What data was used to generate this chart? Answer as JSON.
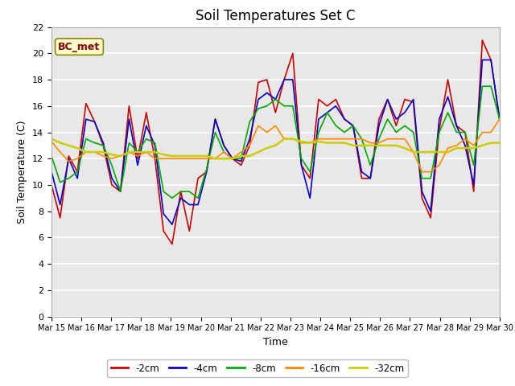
{
  "title": "Soil Temperatures Set C",
  "xlabel": "Time",
  "ylabel": "Soil Temperature (C)",
  "ylim": [
    0,
    22
  ],
  "yticks": [
    0,
    2,
    4,
    6,
    8,
    10,
    12,
    14,
    16,
    18,
    20,
    22
  ],
  "x_labels": [
    "Mar 15",
    "Mar 16",
    "Mar 17",
    "Mar 18",
    "Mar 19",
    "Mar 20",
    "Mar 21",
    "Mar 22",
    "Mar 23",
    "Mar 24",
    "Mar 25",
    "Mar 26",
    "Mar 27",
    "Mar 28",
    "Mar 29",
    "Mar 30"
  ],
  "annotation": "BC_met",
  "fig_bg": "#ffffff",
  "plot_bg": "#e8e8e8",
  "grid_color": "#ffffff",
  "series": {
    "-2cm": {
      "color": "#cc0000",
      "lw": 1.2
    },
    "-4cm": {
      "color": "#0000cc",
      "lw": 1.2
    },
    "-8cm": {
      "color": "#00aa00",
      "lw": 1.2
    },
    "-16cm": {
      "color": "#ff8800",
      "lw": 1.2
    },
    "-32cm": {
      "color": "#cccc00",
      "lw": 1.8
    }
  },
  "series_order": [
    "-2cm",
    "-4cm",
    "-8cm",
    "-16cm",
    "-32cm"
  ],
  "data": {
    "-2cm": [
      10.0,
      7.5,
      12.2,
      11.0,
      16.2,
      14.8,
      13.0,
      10.0,
      9.5,
      16.0,
      12.0,
      15.5,
      12.0,
      6.5,
      5.5,
      9.5,
      6.5,
      10.5,
      11.0,
      15.0,
      13.0,
      12.0,
      11.5,
      13.0,
      17.8,
      18.0,
      15.5,
      18.0,
      20.0,
      11.5,
      10.5,
      16.5,
      16.0,
      16.5,
      15.0,
      14.5,
      10.5,
      10.5,
      15.0,
      16.5,
      14.5,
      16.5,
      16.3,
      9.0,
      7.5,
      14.2,
      18.0,
      14.5,
      14.0,
      9.5,
      21.0,
      19.5,
      15.0
    ],
    "-4cm": [
      11.0,
      8.5,
      12.0,
      10.5,
      15.0,
      14.8,
      13.2,
      10.5,
      9.5,
      15.0,
      11.5,
      14.5,
      13.0,
      7.8,
      7.0,
      9.0,
      8.5,
      8.5,
      11.0,
      15.0,
      13.0,
      12.0,
      11.8,
      13.5,
      16.5,
      17.0,
      16.5,
      18.0,
      18.0,
      11.5,
      9.0,
      15.0,
      15.5,
      16.0,
      15.0,
      14.5,
      11.0,
      10.5,
      14.5,
      16.5,
      15.0,
      15.5,
      16.5,
      9.5,
      8.0,
      15.0,
      16.7,
      14.5,
      13.0,
      10.0,
      19.5,
      19.5,
      15.0
    ],
    "-8cm": [
      12.2,
      10.2,
      10.5,
      11.0,
      13.5,
      13.2,
      13.0,
      11.5,
      9.5,
      13.2,
      12.5,
      13.5,
      13.2,
      9.5,
      9.0,
      9.5,
      9.5,
      9.0,
      11.2,
      14.0,
      12.5,
      12.0,
      12.0,
      14.8,
      15.8,
      16.0,
      16.5,
      16.0,
      16.0,
      12.0,
      11.0,
      14.0,
      15.5,
      14.5,
      14.0,
      14.5,
      13.5,
      11.5,
      13.5,
      15.0,
      14.0,
      14.5,
      14.0,
      10.5,
      10.5,
      14.0,
      15.5,
      14.0,
      14.0,
      11.5,
      17.5,
      17.5,
      15.0
    ],
    "-16cm": [
      13.3,
      12.5,
      11.8,
      12.0,
      12.5,
      12.5,
      12.2,
      12.0,
      12.2,
      12.5,
      12.2,
      12.5,
      12.0,
      12.0,
      12.0,
      12.0,
      12.0,
      12.0,
      12.0,
      12.0,
      12.5,
      12.0,
      12.5,
      13.0,
      14.5,
      14.0,
      14.5,
      13.5,
      13.5,
      13.2,
      13.2,
      13.5,
      13.5,
      13.5,
      13.5,
      13.5,
      13.5,
      13.2,
      13.2,
      13.5,
      13.5,
      13.5,
      12.5,
      11.0,
      11.0,
      11.5,
      12.8,
      13.0,
      13.5,
      13.0,
      14.0,
      14.0,
      15.0
    ],
    "-32cm": [
      13.5,
      13.2,
      13.0,
      12.8,
      12.5,
      12.5,
      12.5,
      12.3,
      12.2,
      12.5,
      12.5,
      12.5,
      12.5,
      12.3,
      12.2,
      12.2,
      12.2,
      12.2,
      12.2,
      12.0,
      12.0,
      12.0,
      12.2,
      12.2,
      12.5,
      12.8,
      13.0,
      13.5,
      13.5,
      13.3,
      13.2,
      13.3,
      13.2,
      13.2,
      13.2,
      13.0,
      13.0,
      13.0,
      13.0,
      13.0,
      13.0,
      12.8,
      12.5,
      12.5,
      12.5,
      12.5,
      12.5,
      12.8,
      12.8,
      12.8,
      13.0,
      13.2,
      13.2
    ]
  }
}
